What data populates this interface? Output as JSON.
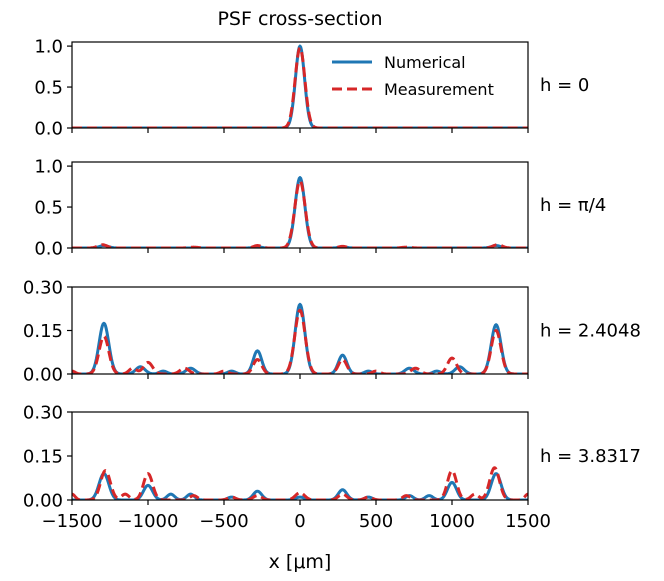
{
  "chart_data": {
    "type": "line",
    "title": "PSF cross-section",
    "xlabel": "x [μm]",
    "xlim": [
      -1500,
      1500
    ],
    "xticks": [
      -1500,
      -1000,
      -500,
      0,
      500,
      1000,
      1500
    ],
    "xtick_labels": [
      "−1500",
      "−1000",
      "−500",
      "0",
      "500",
      "1000",
      "1500"
    ],
    "legend": {
      "placement": "top-right",
      "entries": [
        "Numerical",
        "Measurement"
      ]
    },
    "colors": {
      "numerical": "#1f77b4",
      "measurement": "#d62728"
    },
    "panels": [
      {
        "label": "h  = 0",
        "ylim": [
          0,
          1.05
        ],
        "yticks": [
          0,
          0.5,
          1.0
        ],
        "ytick_labels": [
          "0.0",
          "0.5",
          "1.0"
        ],
        "series": [
          {
            "name": "Numerical",
            "peaks": [
              [
                0,
                1.0,
                30
              ]
            ]
          },
          {
            "name": "Measurement",
            "peaks": [
              [
                0,
                0.98,
                32
              ]
            ]
          }
        ]
      },
      {
        "label": "h  = π/4",
        "ylim": [
          0,
          1.05
        ],
        "yticks": [
          0,
          0.5,
          1.0
        ],
        "ytick_labels": [
          "0.0",
          "0.5",
          "1.0"
        ],
        "series": [
          {
            "name": "Numerical",
            "peaks": [
              [
                0,
                0.86,
                32
              ],
              [
                -1290,
                0.03,
                30
              ],
              [
                1290,
                0.03,
                30
              ],
              [
                -280,
                0.015,
                25
              ],
              [
                280,
                0.015,
                25
              ]
            ]
          },
          {
            "name": "Measurement",
            "peaks": [
              [
                0,
                0.82,
                34
              ],
              [
                -1300,
                0.04,
                30
              ],
              [
                1300,
                0.04,
                30
              ],
              [
                -280,
                0.03,
                25
              ],
              [
                280,
                0.02,
                25
              ],
              [
                -700,
                0.01,
                30
              ],
              [
                700,
                0.01,
                30
              ]
            ]
          }
        ]
      },
      {
        "label": "h  = 2.4048",
        "ylim": [
          0,
          0.3
        ],
        "yticks": [
          0,
          0.15,
          0.3
        ],
        "ytick_labels": [
          "0.00",
          "0.15",
          "0.30"
        ],
        "series": [
          {
            "name": "Numerical",
            "peaks": [
              [
                0,
                0.24,
                32
              ],
              [
                -1290,
                0.175,
                32
              ],
              [
                1290,
                0.17,
                32
              ],
              [
                -280,
                0.08,
                28
              ],
              [
                280,
                0.065,
                28
              ],
              [
                -1050,
                0.025,
                30
              ],
              [
                1050,
                0.025,
                30
              ],
              [
                -720,
                0.02,
                30
              ],
              [
                720,
                0.02,
                30
              ],
              [
                -450,
                0.01,
                25
              ],
              [
                450,
                0.01,
                25
              ],
              [
                -900,
                0.01,
                25
              ],
              [
                900,
                0.01,
                25
              ]
            ]
          },
          {
            "name": "Measurement",
            "peaks": [
              [
                0,
                0.22,
                34
              ],
              [
                -1290,
                0.13,
                32
              ],
              [
                1290,
                0.15,
                32
              ],
              [
                -280,
                0.05,
                28
              ],
              [
                280,
                0.05,
                28
              ],
              [
                -1000,
                0.04,
                30
              ],
              [
                1000,
                0.055,
                30
              ],
              [
                -1100,
                0.02,
                25
              ],
              [
                -760,
                0.02,
                30
              ],
              [
                760,
                0.02,
                30
              ],
              [
                -500,
                0.01,
                25
              ],
              [
                500,
                0.01,
                25
              ],
              [
                -1500,
                0.01,
                20
              ]
            ]
          }
        ]
      },
      {
        "label": "h  = 3.8317",
        "ylim": [
          0,
          0.3
        ],
        "yticks": [
          0,
          0.15,
          0.3
        ],
        "ytick_labels": [
          "0.00",
          "0.15",
          "0.30"
        ],
        "series": [
          {
            "name": "Numerical",
            "peaks": [
              [
                -1290,
                0.09,
                32
              ],
              [
                1290,
                0.09,
                32
              ],
              [
                -1000,
                0.05,
                30
              ],
              [
                1000,
                0.06,
                30
              ],
              [
                -850,
                0.02,
                25
              ],
              [
                -720,
                0.02,
                25
              ],
              [
                -280,
                0.03,
                28
              ],
              [
                280,
                0.035,
                28
              ],
              [
                0,
                0.01,
                28
              ],
              [
                -450,
                0.01,
                25
              ],
              [
                450,
                0.01,
                25
              ],
              [
                720,
                0.015,
                25
              ],
              [
                850,
                0.015,
                25
              ]
            ]
          },
          {
            "name": "Measurement",
            "peaks": [
              [
                -1280,
                0.1,
                32
              ],
              [
                1280,
                0.11,
                32
              ],
              [
                -1000,
                0.09,
                30
              ],
              [
                1000,
                0.1,
                30
              ],
              [
                0,
                0.025,
                30
              ],
              [
                -280,
                0.015,
                28
              ],
              [
                280,
                0.02,
                28
              ],
              [
                -1500,
                0.02,
                20
              ],
              [
                1500,
                0.02,
                20
              ],
              [
                -700,
                0.015,
                25
              ],
              [
                700,
                0.015,
                25
              ],
              [
                -1150,
                0.02,
                25
              ],
              [
                1150,
                0.02,
                25
              ],
              [
                -450,
                0.01,
                25
              ],
              [
                450,
                0.01,
                25
              ]
            ]
          }
        ]
      }
    ]
  }
}
